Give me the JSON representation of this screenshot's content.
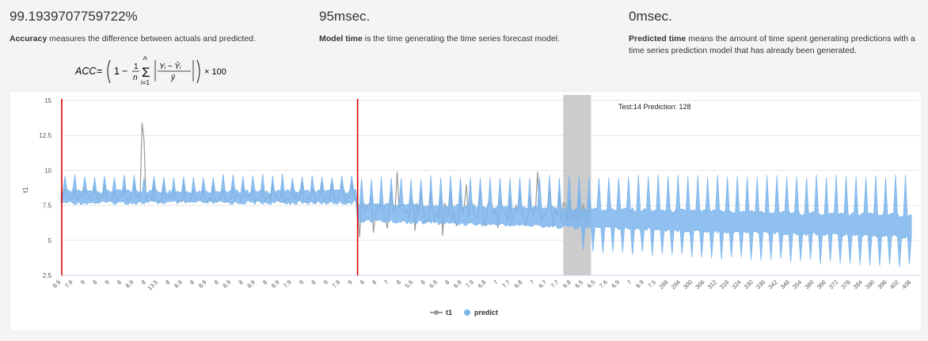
{
  "metrics": {
    "accuracy": {
      "value": "99.1939707759722%",
      "term": "Accuracy",
      "text": " measures the difference between actuals and predicted."
    },
    "model_time": {
      "value": "95msec.",
      "term": "Model time",
      "text": " is the time generating the time series forecast model."
    },
    "predicted_time": {
      "value": "0msec.",
      "term": "Predicted time",
      "text": " means the amount of time spent generating predictions with a time series prediction model that has already been generated."
    }
  },
  "formula": {
    "lhs": "ACC",
    "n": "n",
    "top": "n",
    "bottom": "i=1",
    "numer": "Yᵢ − Ŷᵢ",
    "denom": "ȳ",
    "scale": "× 100"
  },
  "colors": {
    "actual": "#999999",
    "predict": "#7cb5ec",
    "marker": "#dd0000",
    "band": "#cccccc"
  },
  "chart_data": {
    "type": "line",
    "ylabel": "t1",
    "ylim": [
      2.5,
      15
    ],
    "yticks": [
      "2.5",
      "5",
      "7.5",
      "10",
      "12.5",
      "15"
    ],
    "xtick_labels": [
      "8.9",
      "7.9",
      "9",
      "8",
      "9",
      "8",
      "8.9",
      "8",
      "13.5",
      "8",
      "8.9",
      "8",
      "8.9",
      "8",
      "8.9",
      "8",
      "8.9",
      "8",
      "8.9",
      "7.9",
      "9",
      "8",
      "9",
      "7.9",
      "9",
      "8",
      "8",
      "7",
      "8",
      "5.5",
      "8",
      "6.9",
      "8",
      "6.8",
      "7.9",
      "6.8",
      "7",
      "7.7",
      "6.8",
      "7",
      "6.7",
      "7.7",
      "6.8",
      "6.5",
      "6.5",
      "7.6",
      "6.9",
      "7",
      "6.9",
      "7.5",
      "288",
      "294",
      "300",
      "306",
      "312",
      "318",
      "324",
      "330",
      "336",
      "342",
      "348",
      "354",
      "360",
      "366",
      "372",
      "378",
      "384",
      "390",
      "396",
      "402",
      "408"
    ],
    "annotation": "Test:14  Prediction: 128",
    "markers": {
      "train_start": 0,
      "test_start": 150,
      "band_from": 254,
      "band_to": 268
    },
    "legend": [
      "t1",
      "predict"
    ]
  }
}
